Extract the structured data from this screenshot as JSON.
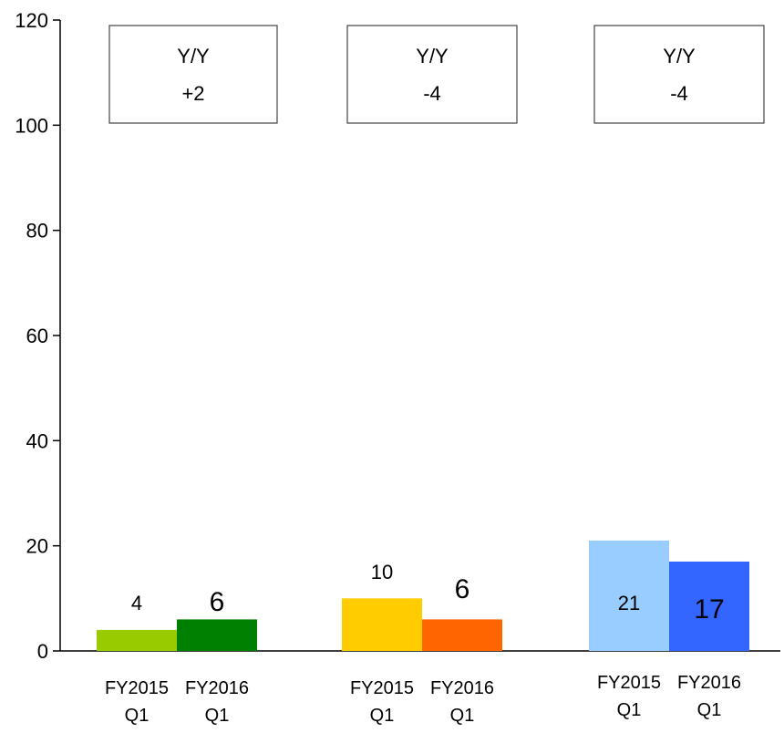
{
  "chart_data": {
    "type": "bar",
    "ylim": [
      0,
      120
    ],
    "yticks": [
      "0",
      "20",
      "40",
      "60",
      "80",
      "100",
      "120"
    ],
    "grid": false,
    "groups": [
      {
        "bars": [
          {
            "label_line1": "FY2015",
            "label_line2": "Q1",
            "value": 4,
            "value_label": "4",
            "color": "#99cc00"
          },
          {
            "label_line1": "FY2016",
            "label_line2": "Q1",
            "value": 6,
            "value_label": "6",
            "color": "#008000"
          }
        ],
        "yoy_title": "Y/Y",
        "yoy_value": "+2"
      },
      {
        "bars": [
          {
            "label_line1": "FY2015",
            "label_line2": "Q1",
            "value": 10,
            "value_label": "10",
            "color": "#ffcc00"
          },
          {
            "label_line1": "FY2016",
            "label_line2": "Q1",
            "value": 6,
            "value_label": "6",
            "color": "#ff6600"
          }
        ],
        "yoy_title": "Y/Y",
        "yoy_value": "-4"
      },
      {
        "bars": [
          {
            "label_line1": "FY2015",
            "label_line2": "Q1",
            "value": 21,
            "value_label": "21",
            "color": "#99ccff"
          },
          {
            "label_line1": "FY2016",
            "label_line2": "Q1",
            "value": 17,
            "value_label": "17",
            "color": "#3366ff"
          }
        ],
        "yoy_title": "Y/Y",
        "yoy_value": "-4"
      }
    ]
  }
}
